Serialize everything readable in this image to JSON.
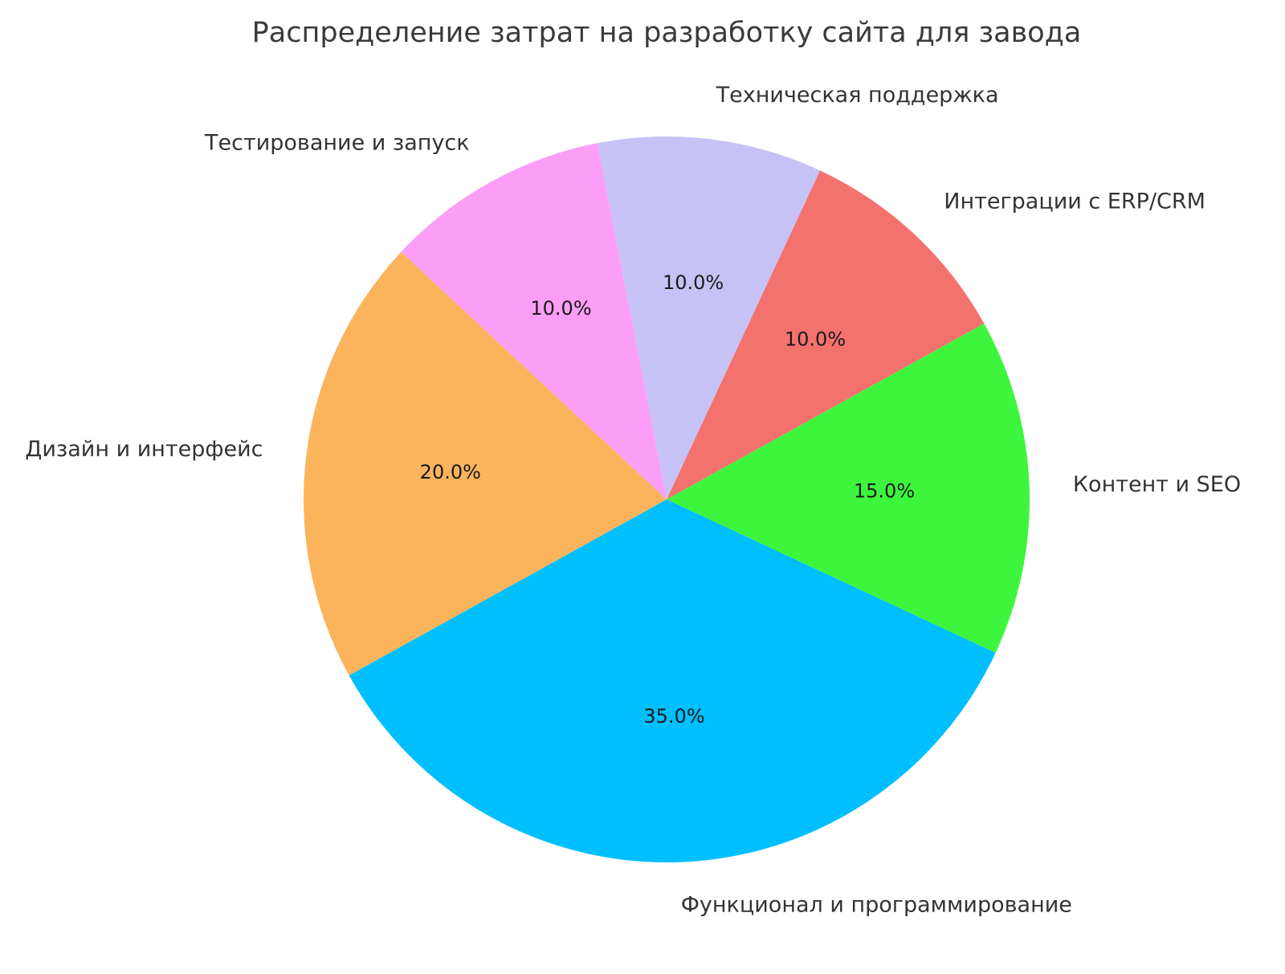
{
  "figure": {
    "background": "#ffffff",
    "text_color": "#333333",
    "title_color": "#3a3a3a"
  },
  "chart_data": {
    "type": "pie",
    "title": "Распределение затрат на разработку сайта для завода",
    "units": "%",
    "legend": "none",
    "direction": "counterclockwise",
    "start_angle_deg": -25,
    "slices": [
      {
        "label": "Контент и SEO",
        "value": 15.0,
        "percent_label": "15.0%",
        "color": "#3EF53E"
      },
      {
        "label": "Интеграции с ERP/CRM",
        "value": 10.0,
        "percent_label": "10.0%",
        "color": "#F4726D"
      },
      {
        "label": "Техническая поддержка",
        "value": 10.0,
        "percent_label": "10.0%",
        "color": "#C7C2F5"
      },
      {
        "label": "Тестирование и запуск",
        "value": 10.0,
        "percent_label": "10.0%",
        "color": "#FC9EF5"
      },
      {
        "label": "Дизайн и интерфейс",
        "value": 20.0,
        "percent_label": "20.0%",
        "color": "#FBB45C"
      },
      {
        "label": "Функционал и программирование",
        "value": 35.0,
        "percent_label": "35.0%",
        "color": "#00BFFF"
      }
    ]
  }
}
